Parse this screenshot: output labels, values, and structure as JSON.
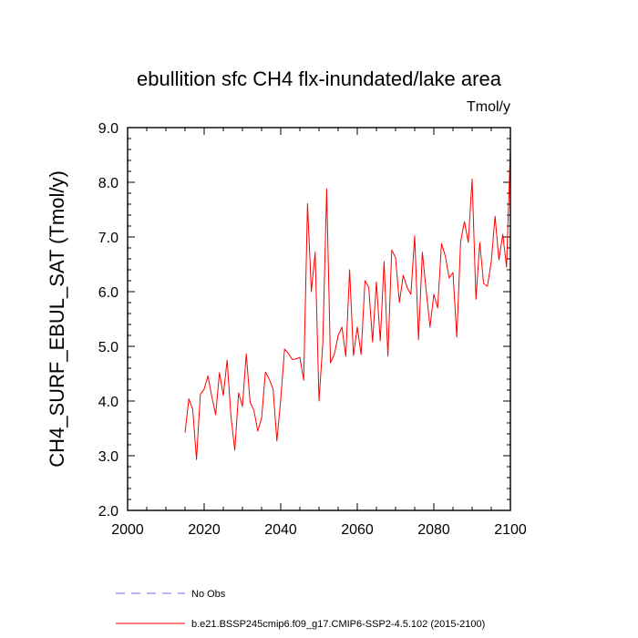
{
  "chart_data": {
    "type": "line",
    "title": "ebullition sfc CH4 flx-inundated/lake area",
    "unit_label": "Tmol/y",
    "ylabel": "CH4_SURF_EBUL_SAT  (Tmol/y)",
    "xlabel": "",
    "xlim": [
      2000,
      2100
    ],
    "ylim": [
      2.0,
      9.0
    ],
    "x_ticks": [
      2000,
      2020,
      2040,
      2060,
      2080,
      2100
    ],
    "x_tick_labels": [
      "2000",
      "2020",
      "2040",
      "2060",
      "2080",
      "2100"
    ],
    "y_ticks": [
      2.0,
      3.0,
      4.0,
      5.0,
      6.0,
      7.0,
      8.0,
      9.0
    ],
    "y_tick_labels": [
      "2.0",
      "3.0",
      "4.0",
      "5.0",
      "6.0",
      "7.0",
      "8.0",
      "9.0"
    ],
    "grid": false,
    "series": [
      {
        "name": "b.e21.BSSP245cmip6.f09_g17.CMIP6-SSP2-4.5.102 (2015-2100)",
        "color": "#ff0000",
        "x": [
          2015,
          2016,
          2017,
          2018,
          2019,
          2020,
          2021,
          2022,
          2023,
          2024,
          2025,
          2026,
          2027,
          2028,
          2029,
          2030,
          2031,
          2032,
          2033,
          2034,
          2035,
          2036,
          2037,
          2038,
          2039,
          2040,
          2041,
          2042,
          2043,
          2044,
          2045,
          2046,
          2047,
          2048,
          2049,
          2050,
          2051,
          2052,
          2053,
          2054,
          2055,
          2056,
          2057,
          2058,
          2059,
          2060,
          2061,
          2062,
          2063,
          2064,
          2065,
          2066,
          2067,
          2068,
          2069,
          2070,
          2071,
          2072,
          2073,
          2074,
          2075,
          2076,
          2077,
          2078,
          2079,
          2080,
          2081,
          2082,
          2083,
          2084,
          2085,
          2086,
          2087,
          2088,
          2089,
          2090,
          2091,
          2092,
          2093,
          2094,
          2095,
          2096,
          2097,
          2098,
          2099,
          2100
        ],
        "values": [
          3.42,
          4.04,
          3.85,
          2.93,
          4.12,
          4.22,
          4.46,
          4.08,
          3.75,
          4.52,
          4.1,
          4.75,
          3.72,
          3.1,
          4.15,
          3.9,
          4.86,
          3.98,
          3.83,
          3.45,
          3.68,
          4.53,
          4.4,
          4.22,
          3.27,
          4.03,
          4.95,
          4.87,
          4.76,
          4.77,
          4.8,
          4.38,
          7.61,
          6.0,
          6.72,
          4.0,
          5.07,
          7.88,
          4.7,
          4.85,
          5.2,
          5.35,
          4.82,
          6.4,
          4.83,
          5.35,
          4.85,
          6.2,
          6.08,
          5.08,
          6.18,
          5.1,
          6.55,
          4.82,
          6.76,
          6.62,
          5.8,
          6.3,
          6.08,
          5.95,
          7.02,
          5.12,
          6.72,
          6.02,
          5.35,
          5.95,
          5.7,
          6.88,
          6.65,
          6.25,
          6.35,
          5.17,
          6.92,
          7.28,
          6.9,
          8.06,
          5.86,
          6.9,
          6.15,
          6.1,
          6.55,
          7.38,
          6.58,
          7.05,
          6.45,
          8.62
        ]
      }
    ],
    "legend": {
      "placement": "bottom",
      "entries": [
        {
          "label": "No Obs",
          "color": "#6a6aff",
          "style": "dashed"
        },
        {
          "label": "b.e21.BSSP245cmip6.f09_g17.CMIP6-SSP2-4.5.102 (2015-2100)",
          "color": "#ff0000",
          "style": "solid"
        }
      ]
    }
  }
}
